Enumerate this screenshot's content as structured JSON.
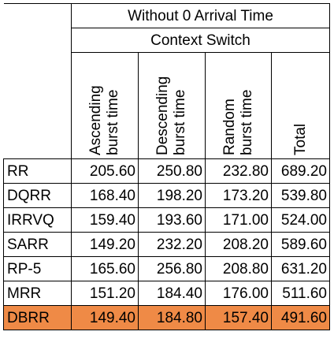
{
  "header": {
    "group_title": "Without 0 Arrival Time",
    "sub_title": "Context Switch"
  },
  "columns": [
    {
      "line1": "Ascending",
      "line2": "burst time"
    },
    {
      "line1": "Descending",
      "line2": "burst time"
    },
    {
      "line1": "Random",
      "line2": "burst time"
    },
    {
      "line1": "Total",
      "line2": ""
    }
  ],
  "rows": [
    {
      "algo": "RR",
      "values": [
        "205.60",
        "250.80",
        "232.80",
        "689.20"
      ],
      "highlight": false
    },
    {
      "algo": "DQRR",
      "values": [
        "168.40",
        "198.20",
        "173.20",
        "539.80"
      ],
      "highlight": false
    },
    {
      "algo": "IRRVQ",
      "values": [
        "159.40",
        "193.60",
        "171.00",
        "524.00"
      ],
      "highlight": false
    },
    {
      "algo": "SARR",
      "values": [
        "149.20",
        "232.20",
        "208.20",
        "589.60"
      ],
      "highlight": false
    },
    {
      "algo": "RP-5",
      "values": [
        "165.60",
        "256.80",
        "208.80",
        "631.20"
      ],
      "highlight": false
    },
    {
      "algo": "MRR",
      "values": [
        "151.20",
        "184.40",
        "176.00",
        "511.60"
      ],
      "highlight": false
    },
    {
      "algo": "DBRR",
      "values": [
        "149.40",
        "184.80",
        "157.40",
        "491.60"
      ],
      "highlight": true
    }
  ],
  "colors": {
    "highlight_row": "#ef8a46",
    "border": "#000000",
    "background": "#ffffff"
  }
}
